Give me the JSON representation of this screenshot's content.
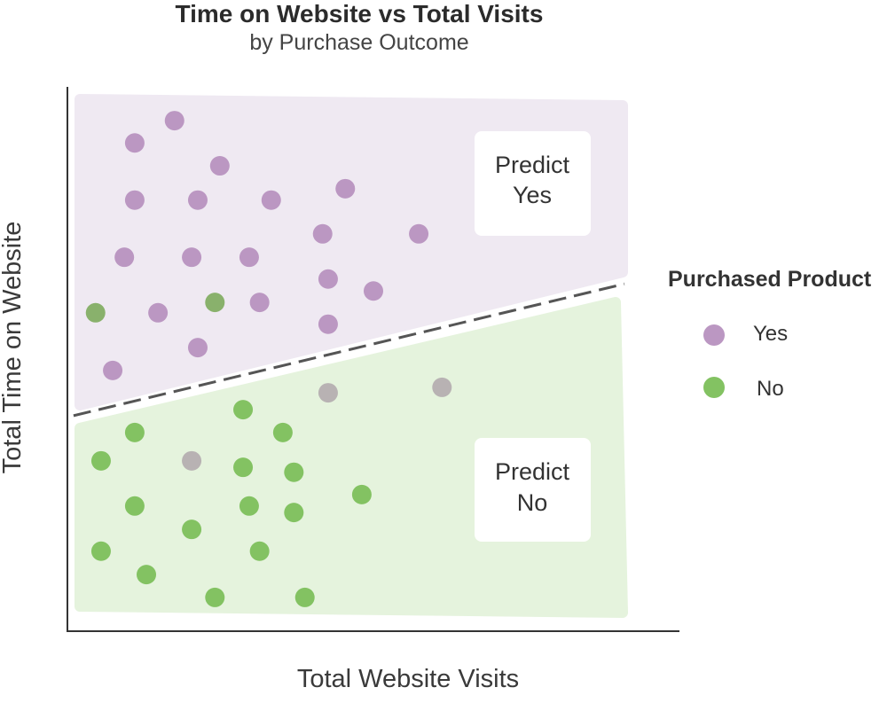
{
  "chart_data": {
    "type": "scatter",
    "title": "Time on Website vs Total Visits",
    "subtitle": "by Purchase Outcome",
    "xlabel": "Total Website Visits",
    "ylabel": "Total Time on Website",
    "xlim": [
      0,
      100
    ],
    "ylim": [
      0,
      100
    ],
    "grid": false,
    "legend": {
      "title": "Purchased Product",
      "placement": "right"
    },
    "series": [
      {
        "name": "Yes",
        "color": "#bb97c2",
        "points": [
          [
            17.5,
            93.8
          ],
          [
            11.0,
            89.7
          ],
          [
            24.9,
            85.5
          ],
          [
            11.0,
            79.2
          ],
          [
            21.3,
            79.2
          ],
          [
            33.3,
            79.2
          ],
          [
            45.4,
            81.3
          ],
          [
            41.7,
            73.0
          ],
          [
            57.4,
            73.0
          ],
          [
            9.3,
            68.7
          ],
          [
            20.3,
            68.7
          ],
          [
            29.7,
            68.7
          ],
          [
            42.6,
            64.7
          ],
          [
            50.0,
            62.5
          ],
          [
            14.8,
            58.5
          ],
          [
            31.4,
            60.4
          ],
          [
            42.6,
            56.4
          ],
          [
            21.3,
            52.1
          ],
          [
            7.4,
            47.9
          ],
          [
            42.6,
            43.8
          ],
          [
            61.2,
            44.8
          ],
          [
            20.3,
            31.3
          ]
        ]
      },
      {
        "name": "No",
        "color": "#83c262",
        "points": [
          [
            4.6,
            58.5
          ],
          [
            24.1,
            60.4
          ],
          [
            28.7,
            40.7
          ],
          [
            11.0,
            36.5
          ],
          [
            35.2,
            36.5
          ],
          [
            5.5,
            31.3
          ],
          [
            28.7,
            30.1
          ],
          [
            37.0,
            29.2
          ],
          [
            48.1,
            25.1
          ],
          [
            11.0,
            23.0
          ],
          [
            29.7,
            23.0
          ],
          [
            37.0,
            21.8
          ],
          [
            20.3,
            18.7
          ],
          [
            5.5,
            14.7
          ],
          [
            31.4,
            14.7
          ],
          [
            12.9,
            10.4
          ],
          [
            24.1,
            6.2
          ],
          [
            38.8,
            6.2
          ]
        ]
      }
    ],
    "misclassified_colors": {
      "Yes": "#b8b2b3",
      "No": "#89b16c"
    },
    "decision_boundary": {
      "style": "dashed",
      "color": "#555555",
      "x": [
        1,
        91
      ],
      "y": [
        39.6,
        63.8
      ]
    },
    "regions": [
      {
        "label": [
          "Predict",
          "Yes"
        ],
        "color": "#efe9f2"
      },
      {
        "label": [
          "Predict",
          "No"
        ],
        "color": "#e5f3dd"
      }
    ]
  }
}
